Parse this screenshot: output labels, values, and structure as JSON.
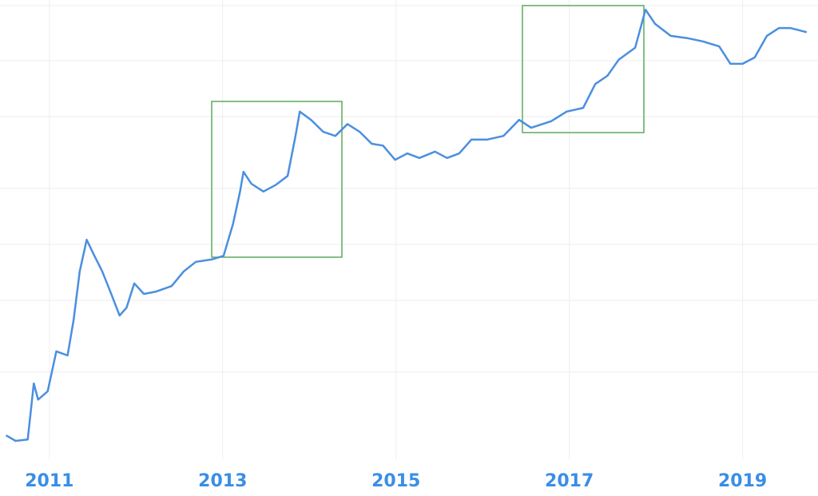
{
  "chart_data": {
    "type": "line",
    "x": [
      2010.5,
      2010.61,
      2010.75,
      2010.82,
      2010.87,
      2010.98,
      2011.08,
      2011.21,
      2011.28,
      2011.35,
      2011.43,
      2011.52,
      2011.61,
      2011.72,
      2011.81,
      2011.89,
      2011.98,
      2012.09,
      2012.23,
      2012.41,
      2012.55,
      2012.69,
      2012.87,
      2013.01,
      2013.12,
      2013.2,
      2013.24,
      2013.33,
      2013.47,
      2013.61,
      2013.75,
      2013.84,
      2013.89,
      2014.02,
      2014.16,
      2014.3,
      2014.44,
      2014.58,
      2014.72,
      2014.85,
      2014.99,
      2015.13,
      2015.27,
      2015.45,
      2015.59,
      2015.73,
      2015.87,
      2016.05,
      2016.24,
      2016.42,
      2016.56,
      2016.79,
      2016.97,
      2017.16,
      2017.3,
      2017.44,
      2017.57,
      2017.76,
      2017.88,
      2017.99,
      2018.17,
      2018.36,
      2018.54,
      2018.73,
      2018.86,
      2019.0,
      2019.14,
      2019.28,
      2019.42,
      2019.55,
      2019.74
    ],
    "series": [
      {
        "color": "#4a8fe0",
        "values": [
          5.2,
          4.0,
          4.3,
          16.5,
          13.0,
          14.8,
          23.5,
          22.6,
          30.4,
          40.9,
          47.8,
          44.3,
          40.9,
          35.7,
          31.3,
          33.0,
          38.3,
          36.0,
          36.5,
          37.7,
          40.9,
          43.0,
          43.5,
          44.3,
          51.3,
          58.3,
          62.6,
          60.0,
          58.3,
          59.7,
          61.7,
          70.4,
          75.7,
          73.9,
          71.3,
          70.4,
          73.0,
          71.3,
          68.7,
          68.3,
          65.2,
          66.6,
          65.6,
          67.0,
          65.6,
          66.6,
          69.6,
          69.6,
          70.4,
          73.9,
          72.2,
          73.6,
          75.7,
          76.5,
          81.7,
          83.5,
          87.0,
          89.6,
          97.9,
          94.8,
          92.2,
          91.7,
          91.0,
          89.9,
          86.1,
          86.1,
          87.5,
          92.2,
          93.9,
          93.9,
          93.0
        ]
      }
    ],
    "xlim": [
      2010.43,
      2019.87
    ],
    "xticks": [
      2011,
      2013,
      2015,
      2017,
      2019
    ],
    "ylim": [
      0,
      100
    ],
    "yticks": [
      19.0,
      34.6,
      46.8,
      59.0,
      74.6,
      86.8,
      98.8
    ],
    "grid": true
  }
}
